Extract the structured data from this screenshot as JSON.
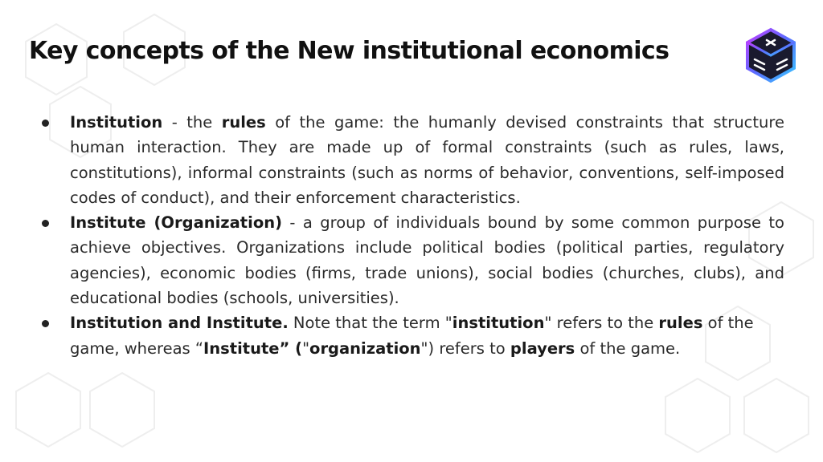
{
  "slide": {
    "title": "Key concepts of the New institutional economics",
    "logo_icon": "hexagon-cube-logo-icon",
    "accent_colors": [
      "#5b6cff",
      "#c13cff",
      "#38c7ff",
      "#1a1a2e"
    ]
  },
  "bullets": [
    {
      "term": "Institution",
      "sep": " - the ",
      "key": "rules",
      "text": " of the game: the humanly devised constraints that structure human interaction.  They are made up of formal constraints (such as rules, laws, constitutions), informal constraints (such as norms of behavior, conventions, self-imposed codes of conduct), and their enforcement characteristics."
    },
    {
      "term": "Institute (Organization)",
      "text": " - a group of individuals bound by some common purpose to achieve objectives.  Organizations include political bodies (political parties, regulatory agencies), economic bodies (firms, trade unions), social bodies (churches, clubs), and educational bodies (schools, universities)."
    },
    {
      "term": "Institution and Institute.",
      "t1": "  Note that the term \"",
      "k1": "institution",
      "t2": "\" refers to the ",
      "k2": "rules",
      "t3": " of the game, whereas “",
      "k3": "Institute” (",
      "t4": "\"",
      "k4": "organization",
      "t5": "\") refers to ",
      "k5": "players",
      "t6": " of the game."
    }
  ]
}
